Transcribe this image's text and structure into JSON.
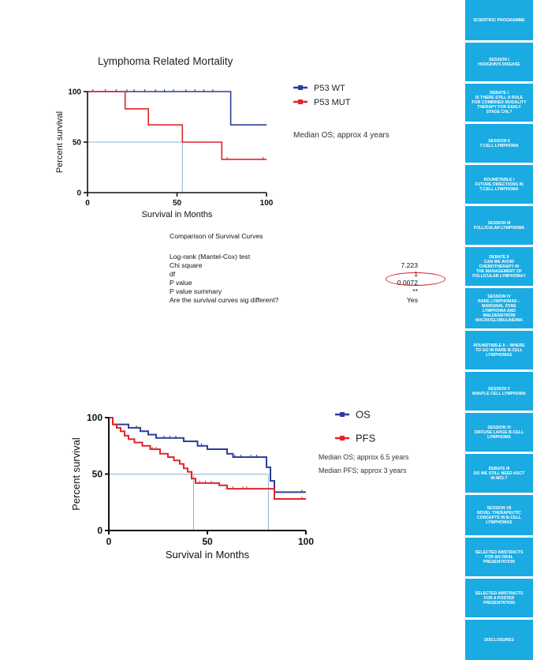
{
  "sidebar": {
    "items": [
      {
        "label": "SCIENTIFIC PROGRAMME"
      },
      {
        "label": "SESSION I\nHODGKIN'S DISEASE"
      },
      {
        "label": "DEBATE I\nIS THERE STILL A ROLE\nFOR COMBINED MODALITY\nTHERAPY FOR EARLY\nSTAGE CHL?"
      },
      {
        "label": "SESSION II\nT-CELL LYMPHOMA"
      },
      {
        "label": "ROUNDTABLE I\nFUTURE DIRECTIONS IN\nT-CELL LYMPHOMA"
      },
      {
        "label": "SESSION III\nFOLLICULAR LYMPHOMA"
      },
      {
        "label": "DEBATE II\nCAN WE AVOID\nCHEMOTHERAPY IN\nTHE MANAGEMENT OF\nFOLLICULAR LYMPHOMA?"
      },
      {
        "label": "SESSION IV\nRARE LYMPHOMAS –\nMARGINAL ZONE\nLYMPHOMA AND\nWALDENSTRÖM\nMACROGLOBULINEMIA"
      },
      {
        "label": "ROUNDTABLE II – WHERE\nTO GO IN RARE B-CELL\nLYMPHOMAS"
      },
      {
        "label": "SESSION V\nMANTLE CELL LYMPHOMA"
      },
      {
        "label": "SESSION VI\nDIFFUSE LARGE B-CELL\nLYMPHOMA"
      },
      {
        "label": "DEBATE III\nDO WE STILL NEED ASCT\nIN MCL?"
      },
      {
        "label": "SESSION VII\nNOVEL THERAPEUTIC\nCONCEPTS IN B-CELL\nLYMPHOMAS"
      },
      {
        "label": "SELECTED ABSTRACTS\nFOR AN ORAL\nPRESENTATION"
      },
      {
        "label": "SELECTED ABSTRACTS\nFOR A POSTER\nPRESENTATION"
      },
      {
        "label": "DISCLOSURES"
      }
    ],
    "color": "#1aabe3"
  },
  "stats": {
    "title": "Comparison of Survival Curves",
    "rows": [
      {
        "k": "Log-rank (Mantel-Cox) test",
        "v": ""
      },
      {
        "k": "Chi square",
        "v": "7.223"
      },
      {
        "k": "df",
        "v": "1"
      },
      {
        "k": "P value",
        "v": "0.0072"
      },
      {
        "k": "P value summary",
        "v": "**"
      },
      {
        "k": "Are the survival curves sig different?",
        "v": "Yes"
      }
    ]
  },
  "chart_data": [
    {
      "type": "line",
      "title": "Lymphoma Related Mortality",
      "xlabel": "Survival in Months",
      "ylabel": "Percent survival",
      "xlim": [
        0,
        100
      ],
      "ylim": [
        0,
        100
      ],
      "xticks": [
        0,
        50,
        100
      ],
      "yticks": [
        0,
        50,
        100
      ],
      "annotation": "Median OS;  approx 4 years",
      "median_line": {
        "x": 53,
        "y": 50
      },
      "series": [
        {
          "name": "P53 WT",
          "color": "#2e3d9a",
          "steps": [
            [
              0,
              100
            ],
            [
              80,
              100
            ],
            [
              80,
              67
            ],
            [
              100,
              67
            ]
          ],
          "censor": [
            [
              3,
              100
            ],
            [
              10,
              100
            ],
            [
              16,
              100
            ],
            [
              22,
              100
            ],
            [
              26,
              100
            ],
            [
              32,
              100
            ],
            [
              38,
              100
            ],
            [
              43,
              100
            ],
            [
              48,
              100
            ],
            [
              55,
              100
            ],
            [
              60,
              100
            ],
            [
              65,
              100
            ],
            [
              70,
              100
            ]
          ]
        },
        {
          "name": "P53 MUT",
          "color": "#e0252b",
          "steps": [
            [
              0,
              100
            ],
            [
              21,
              100
            ],
            [
              21,
              83
            ],
            [
              34,
              83
            ],
            [
              34,
              67
            ],
            [
              53,
              67
            ],
            [
              53,
              50
            ],
            [
              75,
              50
            ],
            [
              75,
              33
            ],
            [
              100,
              33
            ]
          ],
          "censor": [
            [
              78,
              33
            ],
            [
              98,
              33
            ]
          ]
        }
      ]
    },
    {
      "type": "line",
      "title": "",
      "xlabel": "Survival in Months",
      "ylabel": "Percent survival",
      "xlim": [
        0,
        100
      ],
      "ylim": [
        0,
        100
      ],
      "xticks": [
        0,
        50,
        100
      ],
      "yticks": [
        0,
        50,
        100
      ],
      "annotations": [
        "Median OS;  approx 6.5 years",
        "Median PFS;  approx 3 years"
      ],
      "median_lines": [
        {
          "x": 43,
          "y": 50
        },
        {
          "x": 81,
          "y": 50
        }
      ],
      "series": [
        {
          "name": "OS",
          "color": "#2e3d9a",
          "steps": [
            [
              0,
              100
            ],
            [
              2,
              100
            ],
            [
              2,
              94
            ],
            [
              10,
              94
            ],
            [
              10,
              91
            ],
            [
              16,
              91
            ],
            [
              16,
              88
            ],
            [
              20,
              88
            ],
            [
              20,
              85
            ],
            [
              24,
              85
            ],
            [
              24,
              82
            ],
            [
              38,
              82
            ],
            [
              38,
              79
            ],
            [
              45,
              79
            ],
            [
              45,
              75
            ],
            [
              50,
              75
            ],
            [
              50,
              72
            ],
            [
              60,
              72
            ],
            [
              60,
              68
            ],
            [
              63,
              68
            ],
            [
              63,
              65
            ],
            [
              80,
              65
            ],
            [
              80,
              56
            ],
            [
              82,
              56
            ],
            [
              82,
              44
            ],
            [
              84,
              44
            ],
            [
              84,
              34
            ],
            [
              100,
              34
            ]
          ],
          "censor": [
            [
              14,
              91
            ],
            [
              28,
              82
            ],
            [
              31,
              82
            ],
            [
              34,
              82
            ],
            [
              47,
              75
            ],
            [
              64,
              65
            ],
            [
              67,
              65
            ],
            [
              72,
              65
            ],
            [
              75,
              65
            ],
            [
              98,
              34
            ]
          ]
        },
        {
          "name": "PFS",
          "color": "#e0252b",
          "steps": [
            [
              0,
              100
            ],
            [
              2,
              100
            ],
            [
              2,
              94
            ],
            [
              4,
              94
            ],
            [
              4,
              91
            ],
            [
              6,
              91
            ],
            [
              6,
              88
            ],
            [
              8,
              88
            ],
            [
              8,
              84
            ],
            [
              10,
              84
            ],
            [
              10,
              81
            ],
            [
              13,
              81
            ],
            [
              13,
              78
            ],
            [
              17,
              78
            ],
            [
              17,
              75
            ],
            [
              21,
              75
            ],
            [
              21,
              72
            ],
            [
              26,
              72
            ],
            [
              26,
              68
            ],
            [
              30,
              68
            ],
            [
              30,
              65
            ],
            [
              33,
              65
            ],
            [
              33,
              62
            ],
            [
              36,
              62
            ],
            [
              36,
              59
            ],
            [
              38,
              59
            ],
            [
              38,
              55
            ],
            [
              40,
              55
            ],
            [
              40,
              52
            ],
            [
              42,
              52
            ],
            [
              42,
              46
            ],
            [
              44,
              46
            ],
            [
              44,
              42
            ],
            [
              56,
              42
            ],
            [
              56,
              40
            ],
            [
              60,
              40
            ],
            [
              60,
              37
            ],
            [
              84,
              37
            ],
            [
              84,
              28
            ],
            [
              100,
              28
            ]
          ],
          "censor": [
            [
              22,
              72
            ],
            [
              24,
              72
            ],
            [
              46,
              42
            ],
            [
              49,
              42
            ],
            [
              52,
              42
            ],
            [
              63,
              37
            ],
            [
              68,
              37
            ],
            [
              70,
              37
            ],
            [
              98,
              28
            ]
          ]
        }
      ]
    }
  ]
}
